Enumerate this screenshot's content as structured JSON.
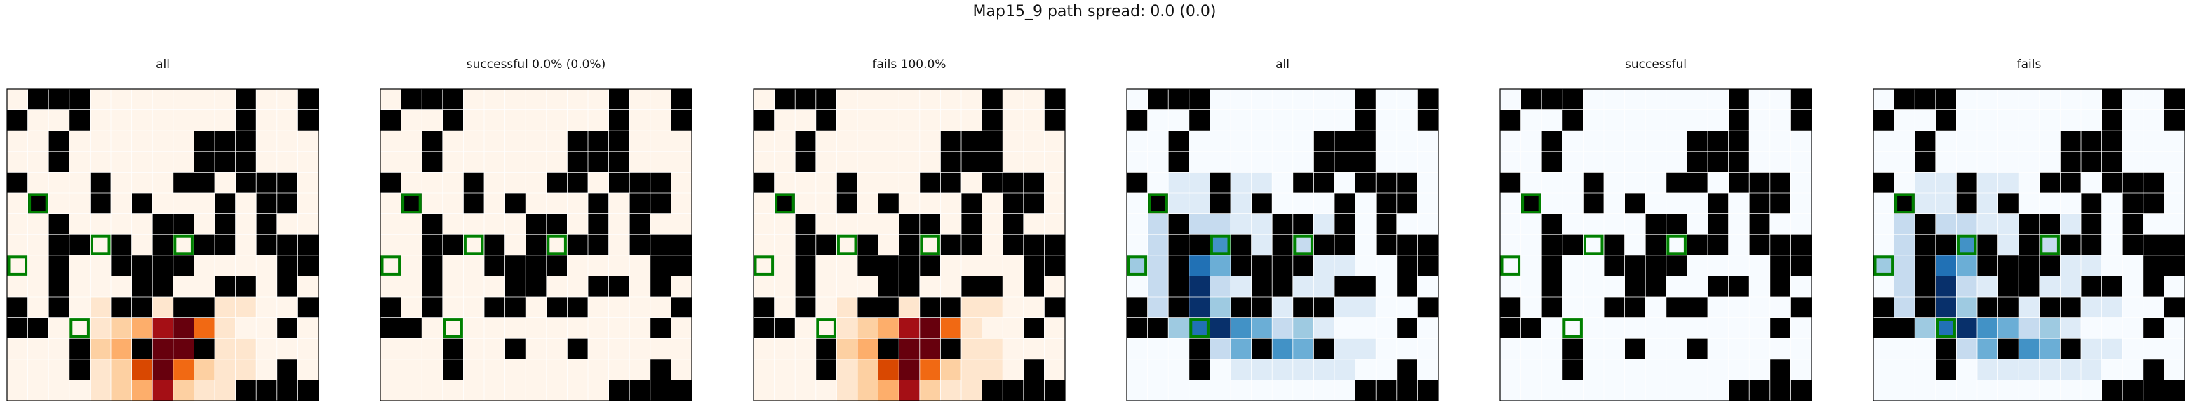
{
  "figure": {
    "suptitle": "Map15_9 path spread: 0.0 (0.0)",
    "panel_titles": [
      "all",
      "successful 0.0% (0.0%)",
      "fails 100.0%",
      "all",
      "successful",
      "fails"
    ]
  },
  "chart_data": {
    "type": "heatmap",
    "title": "Map15_9 path spread: 0.0 (0.0)",
    "grid_size": [
      15,
      15
    ],
    "colormaps": {
      "reds": [
        "#fff5eb",
        "#fee6ce",
        "#fdd0a2",
        "#fdae6b",
        "#f16913",
        "#d94801",
        "#a50f15",
        "#67000d"
      ],
      "blues": [
        "#f7fbff",
        "#deebf7",
        "#c6dbef",
        "#9ecae1",
        "#6baed6",
        "#4292c6",
        "#2171b5",
        "#08306b"
      ]
    },
    "wall_color": "#000000",
    "goal_color": "#008000",
    "walls": [
      [
        0,
        1
      ],
      [
        0,
        2
      ],
      [
        0,
        3
      ],
      [
        0,
        11
      ],
      [
        0,
        14
      ],
      [
        1,
        0
      ],
      [
        1,
        3
      ],
      [
        1,
        11
      ],
      [
        1,
        14
      ],
      [
        2,
        2
      ],
      [
        2,
        9
      ],
      [
        2,
        10
      ],
      [
        2,
        11
      ],
      [
        3,
        2
      ],
      [
        3,
        9
      ],
      [
        3,
        10
      ],
      [
        3,
        11
      ],
      [
        4,
        0
      ],
      [
        4,
        4
      ],
      [
        4,
        8
      ],
      [
        4,
        9
      ],
      [
        4,
        11
      ],
      [
        4,
        12
      ],
      [
        4,
        13
      ],
      [
        5,
        1
      ],
      [
        5,
        4
      ],
      [
        5,
        6
      ],
      [
        5,
        10
      ],
      [
        5,
        12
      ],
      [
        5,
        13
      ],
      [
        6,
        2
      ],
      [
        6,
        7
      ],
      [
        6,
        8
      ],
      [
        6,
        10
      ],
      [
        6,
        12
      ],
      [
        7,
        2
      ],
      [
        7,
        3
      ],
      [
        7,
        5
      ],
      [
        7,
        7
      ],
      [
        7,
        9
      ],
      [
        7,
        10
      ],
      [
        7,
        12
      ],
      [
        7,
        13
      ],
      [
        7,
        14
      ],
      [
        8,
        2
      ],
      [
        8,
        5
      ],
      [
        8,
        6
      ],
      [
        8,
        7
      ],
      [
        8,
        8
      ],
      [
        8,
        13
      ],
      [
        8,
        14
      ],
      [
        9,
        2
      ],
      [
        9,
        6
      ],
      [
        9,
        7
      ],
      [
        9,
        10
      ],
      [
        9,
        11
      ],
      [
        9,
        13
      ],
      [
        10,
        0
      ],
      [
        10,
        2
      ],
      [
        10,
        5
      ],
      [
        10,
        6
      ],
      [
        10,
        8
      ],
      [
        10,
        9
      ],
      [
        10,
        14
      ],
      [
        11,
        0
      ],
      [
        11,
        1
      ],
      [
        11,
        13
      ],
      [
        12,
        3
      ],
      [
        12,
        6
      ],
      [
        12,
        9
      ],
      [
        13,
        3
      ],
      [
        13,
        13
      ],
      [
        14,
        11
      ],
      [
        14,
        12
      ],
      [
        14,
        13
      ],
      [
        14,
        14
      ]
    ],
    "goals": [
      [
        5,
        1
      ],
      [
        7,
        4
      ],
      [
        7,
        8
      ],
      [
        8,
        0
      ],
      [
        11,
        3
      ]
    ],
    "panels": [
      {
        "title": "all",
        "cmap": "reds",
        "values": [
          [
            10,
            4,
            1
          ],
          [
            10,
            7,
            1
          ],
          [
            10,
            10,
            1
          ],
          [
            10,
            11,
            1
          ],
          [
            11,
            4,
            1
          ],
          [
            11,
            5,
            2
          ],
          [
            11,
            6,
            3
          ],
          [
            11,
            7,
            6
          ],
          [
            11,
            8,
            7
          ],
          [
            11,
            9,
            4
          ],
          [
            11,
            10,
            1
          ],
          [
            12,
            4,
            2
          ],
          [
            12,
            5,
            3
          ],
          [
            12,
            7,
            7
          ],
          [
            12,
            8,
            7
          ],
          [
            12,
            10,
            1
          ],
          [
            12,
            11,
            1
          ],
          [
            13,
            4,
            1
          ],
          [
            13,
            5,
            2
          ],
          [
            13,
            6,
            5
          ],
          [
            13,
            7,
            7
          ],
          [
            13,
            8,
            4
          ],
          [
            13,
            9,
            2
          ],
          [
            13,
            10,
            1
          ],
          [
            13,
            11,
            1
          ],
          [
            14,
            4,
            1
          ],
          [
            14,
            5,
            2
          ],
          [
            14,
            6,
            3
          ],
          [
            14,
            7,
            6
          ],
          [
            14,
            8,
            2
          ],
          [
            14,
            9,
            1
          ],
          [
            14,
            10,
            1
          ]
        ]
      },
      {
        "title": "successful 0.0% (0.0%)",
        "cmap": "reds",
        "values": []
      },
      {
        "title": "fails 100.0%",
        "cmap": "reds",
        "values": [
          [
            10,
            4,
            1
          ],
          [
            10,
            7,
            1
          ],
          [
            10,
            10,
            1
          ],
          [
            10,
            11,
            1
          ],
          [
            11,
            4,
            1
          ],
          [
            11,
            5,
            2
          ],
          [
            11,
            6,
            3
          ],
          [
            11,
            7,
            6
          ],
          [
            11,
            8,
            7
          ],
          [
            11,
            9,
            4
          ],
          [
            11,
            10,
            1
          ],
          [
            12,
            4,
            2
          ],
          [
            12,
            5,
            3
          ],
          [
            12,
            7,
            7
          ],
          [
            12,
            8,
            7
          ],
          [
            12,
            10,
            1
          ],
          [
            12,
            11,
            1
          ],
          [
            13,
            4,
            1
          ],
          [
            13,
            5,
            2
          ],
          [
            13,
            6,
            5
          ],
          [
            13,
            7,
            7
          ],
          [
            13,
            8,
            4
          ],
          [
            13,
            9,
            2
          ],
          [
            13,
            10,
            1
          ],
          [
            13,
            11,
            1
          ],
          [
            14,
            4,
            1
          ],
          [
            14,
            5,
            2
          ],
          [
            14,
            6,
            3
          ],
          [
            14,
            7,
            6
          ],
          [
            14,
            8,
            2
          ],
          [
            14,
            9,
            1
          ],
          [
            14,
            10,
            1
          ]
        ]
      },
      {
        "title": "all",
        "cmap": "blues",
        "values": [
          [
            4,
            2,
            1
          ],
          [
            4,
            3,
            1
          ],
          [
            4,
            5,
            1
          ],
          [
            4,
            6,
            1
          ],
          [
            5,
            1,
            2
          ],
          [
            5,
            2,
            1
          ],
          [
            5,
            3,
            1
          ],
          [
            5,
            5,
            1
          ],
          [
            5,
            6,
            1
          ],
          [
            6,
            1,
            2
          ],
          [
            6,
            3,
            2
          ],
          [
            6,
            4,
            2
          ],
          [
            6,
            5,
            1
          ],
          [
            6,
            6,
            1
          ],
          [
            6,
            9,
            1
          ],
          [
            7,
            1,
            2
          ],
          [
            7,
            3,
            4
          ],
          [
            7,
            4,
            5
          ],
          [
            7,
            5,
            2
          ],
          [
            7,
            6,
            1
          ],
          [
            7,
            8,
            2
          ],
          [
            7,
            9,
            1
          ],
          [
            8,
            0,
            3
          ],
          [
            8,
            1,
            2
          ],
          [
            8,
            3,
            6
          ],
          [
            8,
            4,
            4
          ],
          [
            8,
            9,
            1
          ],
          [
            8,
            10,
            1
          ],
          [
            9,
            1,
            2
          ],
          [
            9,
            3,
            7
          ],
          [
            9,
            4,
            2
          ],
          [
            9,
            5,
            1
          ],
          [
            9,
            8,
            1
          ],
          [
            9,
            9,
            1
          ],
          [
            10,
            1,
            2
          ],
          [
            10,
            3,
            7
          ],
          [
            10,
            4,
            3
          ],
          [
            10,
            7,
            1
          ],
          [
            10,
            10,
            1
          ],
          [
            10,
            11,
            1
          ],
          [
            11,
            1,
            3
          ],
          [
            11,
            2,
            3
          ],
          [
            11,
            3,
            6
          ],
          [
            11,
            4,
            7
          ],
          [
            11,
            5,
            5
          ],
          [
            11,
            6,
            4
          ],
          [
            11,
            7,
            2
          ],
          [
            11,
            8,
            3
          ],
          [
            11,
            9,
            1
          ],
          [
            12,
            3,
            1
          ],
          [
            12,
            4,
            2
          ],
          [
            12,
            5,
            4
          ],
          [
            12,
            7,
            5
          ],
          [
            12,
            8,
            4
          ],
          [
            12,
            10,
            1
          ],
          [
            12,
            11,
            1
          ],
          [
            13,
            5,
            1
          ],
          [
            13,
            6,
            1
          ],
          [
            13,
            7,
            1
          ],
          [
            13,
            8,
            1
          ],
          [
            13,
            9,
            1
          ],
          [
            13,
            10,
            1
          ]
        ]
      },
      {
        "title": "successful",
        "cmap": "blues",
        "values": []
      },
      {
        "title": "fails",
        "cmap": "blues",
        "values": [
          [
            4,
            2,
            1
          ],
          [
            4,
            3,
            1
          ],
          [
            4,
            5,
            1
          ],
          [
            4,
            6,
            1
          ],
          [
            5,
            1,
            2
          ],
          [
            5,
            2,
            1
          ],
          [
            5,
            3,
            1
          ],
          [
            5,
            5,
            1
          ],
          [
            5,
            6,
            1
          ],
          [
            6,
            1,
            2
          ],
          [
            6,
            3,
            2
          ],
          [
            6,
            4,
            2
          ],
          [
            6,
            5,
            1
          ],
          [
            6,
            6,
            1
          ],
          [
            6,
            9,
            1
          ],
          [
            7,
            1,
            2
          ],
          [
            7,
            3,
            4
          ],
          [
            7,
            4,
            5
          ],
          [
            7,
            5,
            2
          ],
          [
            7,
            6,
            1
          ],
          [
            7,
            8,
            2
          ],
          [
            7,
            9,
            1
          ],
          [
            8,
            0,
            3
          ],
          [
            8,
            1,
            2
          ],
          [
            8,
            3,
            6
          ],
          [
            8,
            4,
            4
          ],
          [
            8,
            9,
            1
          ],
          [
            8,
            10,
            1
          ],
          [
            9,
            1,
            2
          ],
          [
            9,
            3,
            7
          ],
          [
            9,
            4,
            2
          ],
          [
            9,
            5,
            1
          ],
          [
            9,
            8,
            1
          ],
          [
            9,
            9,
            1
          ],
          [
            10,
            1,
            2
          ],
          [
            10,
            3,
            7
          ],
          [
            10,
            4,
            3
          ],
          [
            10,
            7,
            1
          ],
          [
            10,
            10,
            1
          ],
          [
            10,
            11,
            1
          ],
          [
            11,
            1,
            3
          ],
          [
            11,
            2,
            3
          ],
          [
            11,
            3,
            6
          ],
          [
            11,
            4,
            7
          ],
          [
            11,
            5,
            5
          ],
          [
            11,
            6,
            4
          ],
          [
            11,
            7,
            2
          ],
          [
            11,
            8,
            3
          ],
          [
            11,
            9,
            1
          ],
          [
            12,
            3,
            1
          ],
          [
            12,
            4,
            2
          ],
          [
            12,
            5,
            4
          ],
          [
            12,
            7,
            5
          ],
          [
            12,
            8,
            4
          ],
          [
            12,
            10,
            1
          ],
          [
            12,
            11,
            1
          ],
          [
            13,
            5,
            1
          ],
          [
            13,
            6,
            1
          ],
          [
            13,
            7,
            1
          ],
          [
            13,
            8,
            1
          ],
          [
            13,
            9,
            1
          ],
          [
            13,
            10,
            1
          ]
        ]
      }
    ]
  }
}
